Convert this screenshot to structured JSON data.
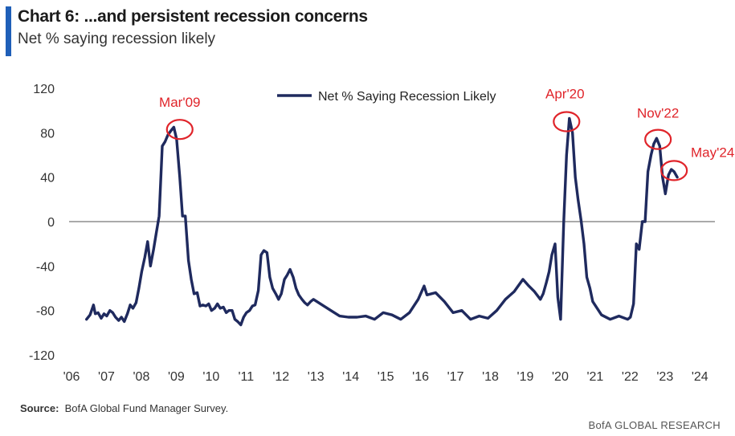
{
  "header": {
    "title": "Chart 6: ...and persistent recession concerns",
    "subtitle": "Net % saying recession likely"
  },
  "footer": {
    "source_label": "Source:",
    "source_text": "BofA Global Fund Manager Survey.",
    "brand": "BofA GLOBAL RESEARCH"
  },
  "colors": {
    "line": "#1f2a5e",
    "annotation": "#e0242a",
    "accent": "#1f5fb8",
    "zero_line": "#777777"
  },
  "chart_data": {
    "type": "line",
    "title": "",
    "xlabel": "",
    "ylabel": "",
    "ylim": [
      -120,
      120
    ],
    "yticks": [
      120,
      80,
      40,
      0,
      -40,
      -80,
      -120
    ],
    "xlim": [
      2006,
      2024.5
    ],
    "xticks": [
      "'06",
      "'07",
      "'08",
      "'09",
      "'10",
      "'11",
      "'12",
      "'13",
      "'14",
      "'15",
      "'16",
      "'17",
      "'18",
      "'19",
      "'20",
      "'21",
      "'22",
      "'23",
      "'24"
    ],
    "grid": false,
    "legend": {
      "position": "top-center",
      "entries": [
        "Net % Saying Recession Likely"
      ]
    },
    "series": [
      {
        "name": "Net % Saying Recession Likely",
        "x": [
          2006.5,
          2006.6,
          2006.7,
          2006.75,
          2006.83,
          2006.92,
          2007.0,
          2007.08,
          2007.17,
          2007.25,
          2007.33,
          2007.42,
          2007.5,
          2007.58,
          2007.67,
          2007.75,
          2007.83,
          2007.92,
          2008.0,
          2008.08,
          2008.17,
          2008.25,
          2008.33,
          2008.42,
          2008.5,
          2008.58,
          2008.67,
          2008.75,
          2008.83,
          2008.92,
          2009.0,
          2009.08,
          2009.17,
          2009.25,
          2009.33,
          2009.42,
          2009.5,
          2009.58,
          2009.67,
          2009.75,
          2009.83,
          2009.92,
          2010.0,
          2010.08,
          2010.17,
          2010.25,
          2010.33,
          2010.42,
          2010.5,
          2010.58,
          2010.67,
          2010.75,
          2010.83,
          2010.92,
          2011.0,
          2011.08,
          2011.17,
          2011.25,
          2011.33,
          2011.42,
          2011.5,
          2011.58,
          2011.67,
          2011.75,
          2011.83,
          2011.92,
          2012.0,
          2012.08,
          2012.17,
          2012.25,
          2012.33,
          2012.42,
          2012.5,
          2012.58,
          2012.67,
          2012.75,
          2012.83,
          2012.92,
          2013.0,
          2013.25,
          2013.5,
          2013.75,
          2014.0,
          2014.25,
          2014.5,
          2014.75,
          2015.0,
          2015.25,
          2015.5,
          2015.75,
          2016.0,
          2016.17,
          2016.25,
          2016.5,
          2016.75,
          2017.0,
          2017.25,
          2017.5,
          2017.75,
          2018.0,
          2018.25,
          2018.5,
          2018.75,
          2019.0,
          2019.17,
          2019.33,
          2019.5,
          2019.58,
          2019.67,
          2019.75,
          2019.83,
          2019.92,
          2020.0,
          2020.08,
          2020.17,
          2020.25,
          2020.33,
          2020.42,
          2020.5,
          2020.58,
          2020.67,
          2020.75,
          2020.83,
          2020.92,
          2021.0,
          2021.25,
          2021.5,
          2021.75,
          2022.0,
          2022.08,
          2022.17,
          2022.25,
          2022.33,
          2022.42,
          2022.5,
          2022.58,
          2022.67,
          2022.75,
          2022.83,
          2022.92,
          2023.0,
          2023.08,
          2023.17,
          2023.25,
          2023.33,
          2023.42
        ],
        "values": [
          -88,
          -84,
          -75,
          -83,
          -82,
          -87,
          -83,
          -85,
          -80,
          -82,
          -86,
          -89,
          -86,
          -90,
          -83,
          -75,
          -78,
          -73,
          -60,
          -45,
          -32,
          -18,
          -40,
          -25,
          -10,
          5,
          68,
          72,
          78,
          82,
          85,
          74,
          40,
          5,
          5,
          -35,
          -52,
          -65,
          -64,
          -76,
          -75,
          -76,
          -74,
          -80,
          -78,
          -74,
          -78,
          -77,
          -82,
          -80,
          -80,
          -88,
          -90,
          -93,
          -86,
          -82,
          -80,
          -76,
          -75,
          -62,
          -30,
          -26,
          -28,
          -50,
          -60,
          -65,
          -70,
          -65,
          -52,
          -48,
          -43,
          -50,
          -60,
          -66,
          -70,
          -73,
          -75,
          -72,
          -70,
          -75,
          -80,
          -85,
          -86,
          -86,
          -85,
          -88,
          -82,
          -84,
          -88,
          -82,
          -70,
          -58,
          -66,
          -64,
          -72,
          -82,
          -80,
          -88,
          -85,
          -87,
          -80,
          -70,
          -63,
          -52,
          -58,
          -63,
          -70,
          -65,
          -55,
          -45,
          -30,
          -20,
          -68,
          -88,
          0,
          60,
          93,
          80,
          40,
          20,
          0,
          -20,
          -50,
          -60,
          -72,
          -84,
          -88,
          -85,
          -88,
          -86,
          -74,
          -20,
          -25,
          0,
          0,
          45,
          60,
          70,
          75,
          68,
          40,
          25,
          42,
          47,
          45,
          40
        ]
      }
    ],
    "annotations": [
      {
        "label": "Mar'09",
        "x": 2009.17,
        "y": 83
      },
      {
        "label": "Apr'20",
        "x": 2020.25,
        "y": 90
      },
      {
        "label": "Nov'22",
        "x": 2022.87,
        "y": 74
      },
      {
        "label": "May'24",
        "x": 2023.33,
        "y": 46
      }
    ]
  }
}
